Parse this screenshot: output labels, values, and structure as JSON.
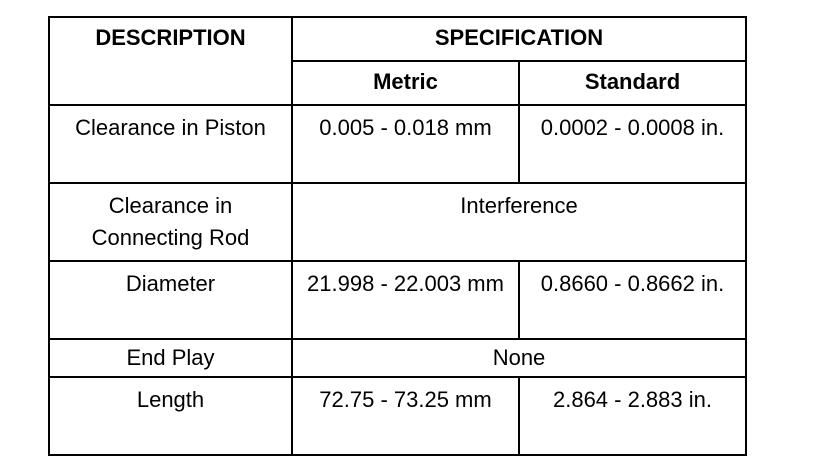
{
  "header": {
    "description": "DESCRIPTION",
    "specification": "SPECIFICATION",
    "metric": "Metric",
    "standard": "Standard"
  },
  "rows": [
    {
      "description": "Clearance in Piston",
      "metric": "0.005 - 0.018 mm",
      "standard": "0.0002 - 0.0008 in."
    },
    {
      "description": "Clearance in Connecting Rod",
      "combined": "Interference"
    },
    {
      "description": "Diameter",
      "metric": "21.998 - 22.003 mm",
      "standard": "0.8660 - 0.8662 in."
    },
    {
      "description": "End Play",
      "combined": "None"
    },
    {
      "description": "Length",
      "metric": "72.75 - 73.25 mm",
      "standard": "2.864 - 2.883 in."
    }
  ]
}
